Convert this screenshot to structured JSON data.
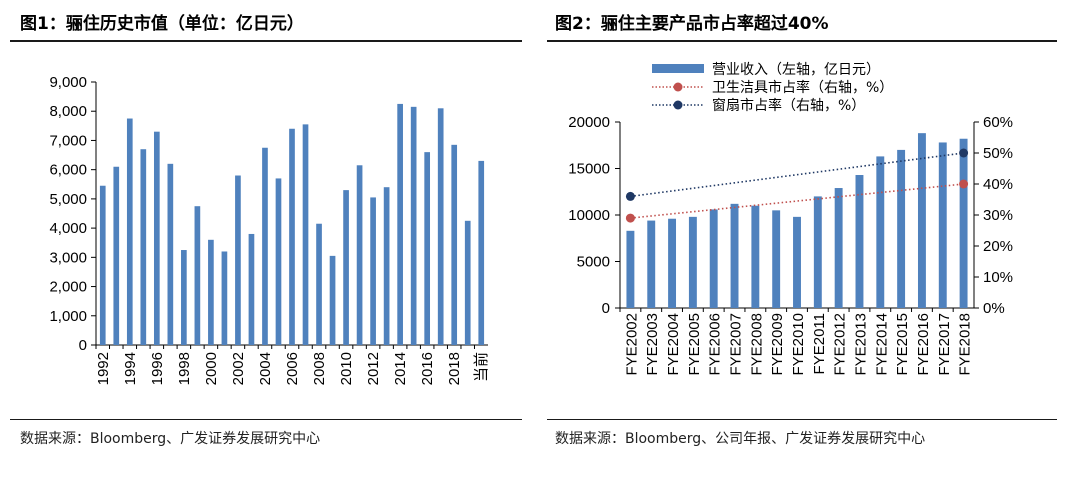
{
  "left": {
    "title": "图1：骊住历史市值（单位：亿日元）",
    "source": "数据来源：Bloomberg、广发证券发展研究中心"
  },
  "right": {
    "title": "图2：骊住主要产品市占率超过40%",
    "source": "数据来源：Bloomberg、公司年报、广发证券发展研究中心"
  },
  "chart_data": [
    {
      "type": "bar",
      "title": "图1：骊住历史市值（单位：亿日元）",
      "categories": [
        "1992",
        "1993",
        "1994",
        "1995",
        "1996",
        "1997",
        "1998",
        "1999",
        "2000",
        "2001",
        "2002",
        "2003",
        "2004",
        "2005",
        "2006",
        "2007",
        "2008",
        "2009",
        "2010",
        "2011",
        "2012",
        "2013",
        "2014",
        "2015",
        "2016",
        "2017",
        "2018",
        "2019",
        "当前"
      ],
      "x_tick_labels": [
        "1992",
        "1994",
        "1996",
        "1998",
        "2000",
        "2002",
        "2004",
        "2006",
        "2008",
        "2010",
        "2012",
        "2014",
        "2016",
        "2018",
        "当前"
      ],
      "values": [
        5450,
        6100,
        7750,
        6700,
        7300,
        6200,
        3250,
        4750,
        3600,
        3200,
        5800,
        3800,
        6750,
        5700,
        7400,
        7550,
        4150,
        3050,
        5300,
        6150,
        5050,
        5400,
        8250,
        8150,
        6600,
        8100,
        6850,
        4250,
        6300
      ],
      "ylim": [
        0,
        9000
      ],
      "yticks": [
        "0",
        "1,000",
        "2,000",
        "3,000",
        "4,000",
        "5,000",
        "6,000",
        "7,000",
        "8,000",
        "9,000"
      ],
      "yticks_values": [
        0,
        1000,
        2000,
        3000,
        4000,
        5000,
        6000,
        7000,
        8000,
        9000
      ],
      "grid": false,
      "bar_color": "#4f81bd"
    },
    {
      "type": "bar",
      "title": "图2：骊住主要产品市占率超过40%",
      "categories": [
        "FYE2002",
        "FYE2003",
        "FYE2004",
        "FYE2005",
        "FYE2006",
        "FYE2007",
        "FYE2008",
        "FYE2009",
        "FYE2010",
        "FYE2011",
        "FYE2012",
        "FYE2013",
        "FYE2014",
        "FYE2015",
        "FYE2016",
        "FYE2017",
        "FYE2018"
      ],
      "legend_position": "top",
      "series": [
        {
          "name": "营业收入（左轴，亿日元）",
          "kind": "bar",
          "axis": "left",
          "color": "#4f81bd",
          "values": [
            8300,
            9400,
            9600,
            9800,
            10600,
            11200,
            11000,
            10500,
            9800,
            12000,
            12900,
            14300,
            16300,
            17000,
            18800,
            17800,
            18200
          ]
        },
        {
          "name": "卫生洁具市占率（右轴，%）",
          "kind": "dotted-line",
          "axis": "right",
          "color": "#c0504d",
          "x": [
            "FYE2002",
            "FYE2018"
          ],
          "values": [
            29,
            40
          ]
        },
        {
          "name": "窗扇市占率（右轴，%）",
          "kind": "dotted-line",
          "axis": "right",
          "color": "#1f3864",
          "x": [
            "FYE2002",
            "FYE2018"
          ],
          "values": [
            36,
            50
          ]
        }
      ],
      "y_left": {
        "ylim": [
          0,
          20000
        ],
        "ticks": [
          "0",
          "5000",
          "10000",
          "15000",
          "20000"
        ],
        "tick_values": [
          0,
          5000,
          10000,
          15000,
          20000
        ]
      },
      "y_right": {
        "ylim": [
          0,
          60
        ],
        "ticks": [
          "0%",
          "10%",
          "20%",
          "30%",
          "40%",
          "50%",
          "60%"
        ],
        "tick_values": [
          0,
          10,
          20,
          30,
          40,
          50,
          60
        ]
      },
      "grid": false
    }
  ]
}
